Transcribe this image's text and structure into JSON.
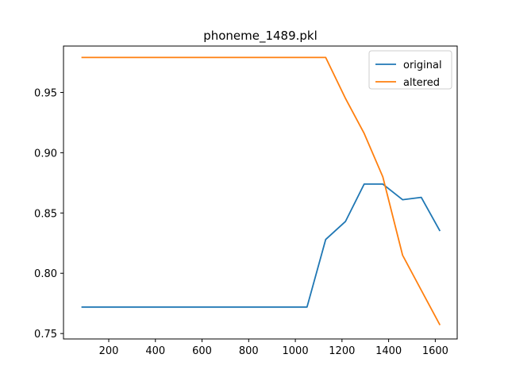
{
  "chart_data": {
    "type": "line",
    "title": "phoneme_1489.pkl",
    "xlabel": "",
    "ylabel": "",
    "xlim": [
      6,
      1694
    ],
    "ylim": [
      0.7455,
      0.9885
    ],
    "x_ticks": [
      200,
      400,
      600,
      800,
      1000,
      1200,
      1400,
      1600
    ],
    "x_tick_labels": [
      "200",
      "400",
      "600",
      "800",
      "1000",
      "1200",
      "1400",
      "1600"
    ],
    "y_ticks": [
      0.75,
      0.8,
      0.85,
      0.9,
      0.95
    ],
    "y_tick_labels": [
      "0.75",
      "0.80",
      "0.85",
      "0.90",
      "0.95"
    ],
    "grid": false,
    "legend_position": "top-right",
    "series": [
      {
        "name": "original",
        "color": "#1f77b4",
        "x": [
          83,
          1050,
          1130,
          1215,
          1295,
          1375,
          1460,
          1540,
          1620
        ],
        "y": [
          0.772,
          0.772,
          0.828,
          0.843,
          0.874,
          0.874,
          0.861,
          0.863,
          0.835
        ]
      },
      {
        "name": "altered",
        "color": "#ff7f0e",
        "x": [
          83,
          1130,
          1215,
          1295,
          1375,
          1460,
          1540,
          1620
        ],
        "y": [
          0.979,
          0.979,
          0.945,
          0.916,
          0.88,
          0.815,
          0.786,
          0.757
        ]
      }
    ]
  }
}
